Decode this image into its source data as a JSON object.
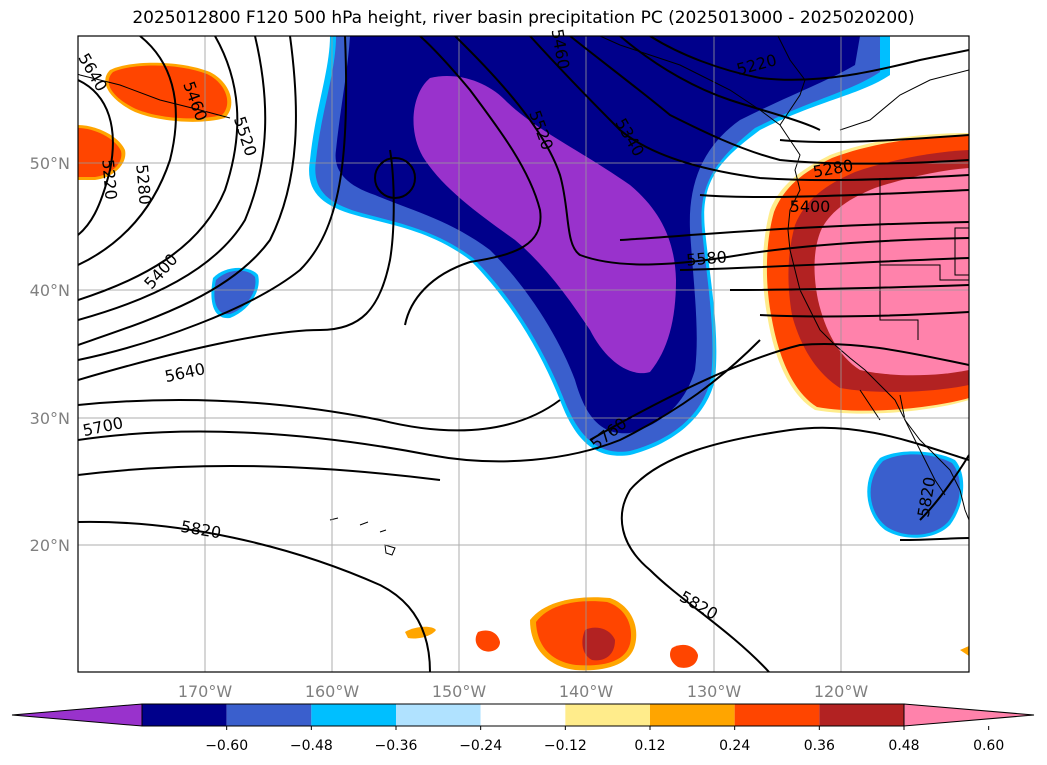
{
  "title": "2025012800 F120 500 hPa height, river basin precipitation PC (2025013000 - 2025020200)",
  "map": {
    "lat_labels": [
      "50°N",
      "40°N",
      "30°N",
      "20°N"
    ],
    "lon_labels": [
      "170°W",
      "160°W",
      "150°W",
      "140°W",
      "130°W",
      "120°W"
    ],
    "gridlines": true
  },
  "contour_labels": [
    "5640",
    "5460",
    "5520",
    "5220",
    "5280",
    "5400",
    "5640",
    "5700",
    "5820",
    "5460",
    "5520",
    "5340",
    "5220",
    "5280",
    "5400",
    "5580",
    "5760",
    "5820",
    "5820"
  ],
  "colorbar": {
    "colors": [
      "#9932CC",
      "#00008B",
      "#3A5FCD",
      "#00BFFF",
      "#B0E2FF",
      "#FFFFFF",
      "#FFEC8B",
      "#FFA500",
      "#FF4500",
      "#B22222",
      "#FF82AB"
    ],
    "tick_labels": [
      "−0.60",
      "−0.48",
      "−0.36",
      "−0.24",
      "−0.12",
      "0.12",
      "0.24",
      "0.36",
      "0.48",
      "0.60"
    ]
  }
}
